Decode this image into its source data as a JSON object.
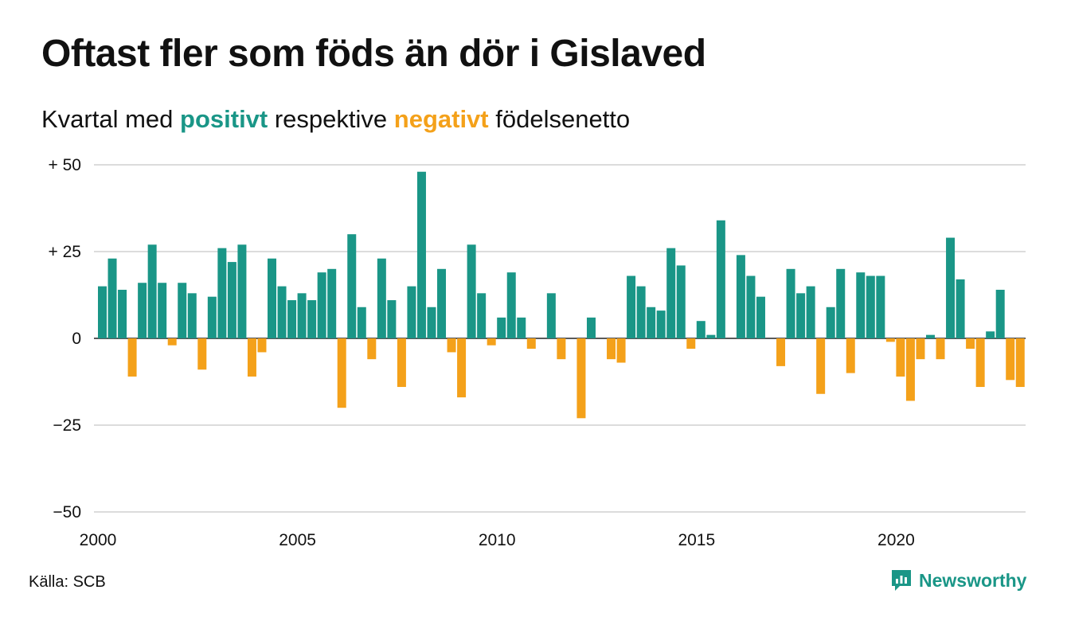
{
  "title": "Oftast fler som föds än dör i Gislaved",
  "subtitle": {
    "prefix": "Kvartal med ",
    "positive_word": "positivt",
    "middle": " respektive ",
    "negative_word": "negativt",
    "suffix": " födelsenetto"
  },
  "source": "Källa: SCB",
  "brand": {
    "name": "Newsworthy",
    "icon": "newsworthy-logo-icon"
  },
  "colors": {
    "positive": "#1a9687",
    "negative": "#f4a11a",
    "grid": "#dcdcdc",
    "text": "#111111"
  },
  "chart_data": {
    "type": "bar",
    "title": "Oftast fler som föds än dör i Gislaved",
    "subtitle": "Kvartal med positivt respektive negativt födelsenetto",
    "xlabel": "",
    "ylabel": "",
    "x_start": "2000 Q1",
    "ylim": [
      -50,
      50
    ],
    "yticks": [
      50,
      25,
      0,
      -25,
      -50
    ],
    "ytick_labels": [
      "+ 50",
      "+ 25",
      "0",
      "−25",
      "−50"
    ],
    "xtick_labels": [
      "2000",
      "2005",
      "2010",
      "2015",
      "2020"
    ],
    "grid": true,
    "values": [
      15,
      23,
      14,
      -11,
      16,
      27,
      16,
      -2,
      16,
      13,
      -9,
      12,
      26,
      22,
      27,
      -11,
      -4,
      23,
      15,
      11,
      13,
      11,
      19,
      20,
      -20,
      30,
      9,
      -6,
      23,
      11,
      -14,
      15,
      48,
      9,
      20,
      -4,
      -17,
      27,
      13,
      -2,
      6,
      19,
      6,
      -3,
      0,
      13,
      -6,
      0,
      -23,
      6,
      0,
      -6,
      -7,
      18,
      15,
      9,
      8,
      26,
      21,
      -3,
      5,
      1,
      34,
      0,
      24,
      18,
      12,
      0,
      -8,
      20,
      13,
      15,
      -16,
      9,
      20,
      -10,
      19,
      18,
      18,
      -1,
      -11,
      -18,
      -6,
      1,
      -6,
      29,
      17,
      -3,
      -14,
      2,
      14,
      -12,
      -14
    ]
  }
}
